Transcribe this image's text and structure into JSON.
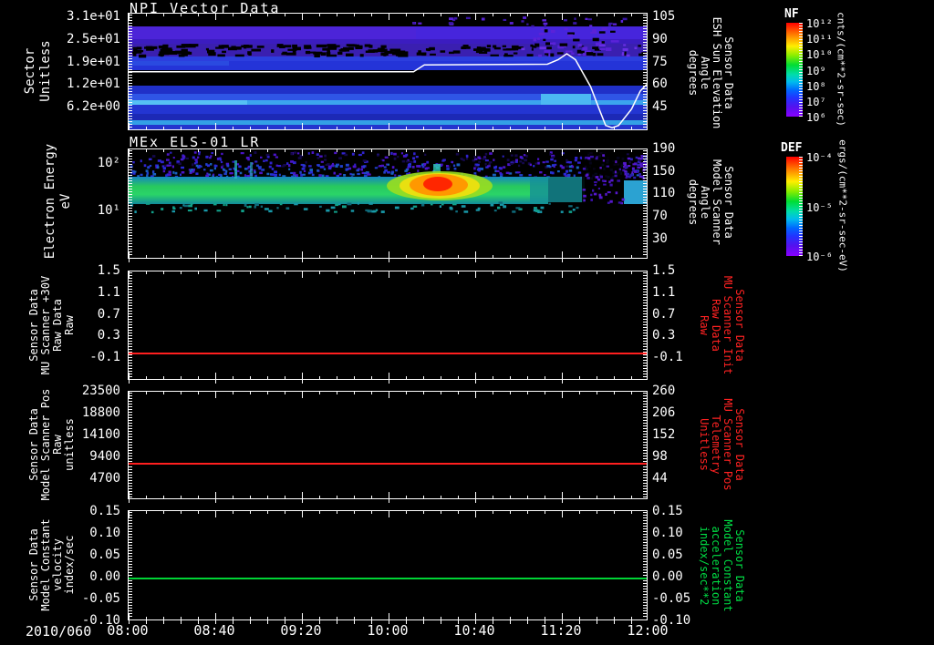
{
  "figure": {
    "date_label": "2010/060",
    "x_ticks": [
      "08:00",
      "08:40",
      "09:20",
      "10:00",
      "10:40",
      "11:20",
      "12:00"
    ],
    "background": "#000000",
    "frame_color": "#ffffff"
  },
  "panels": [
    {
      "id": "npi",
      "title": "NPI Vector Data",
      "left_label": "Sector\nUnitless",
      "left_ticks": [
        "3.1e+01",
        "2.5e+01",
        "1.9e+01",
        "1.2e+01",
        "6.2e+00"
      ],
      "yf": [
        0.03,
        0.8
      ],
      "right_ticks": [
        "105",
        "90",
        "75",
        "60",
        "45"
      ],
      "right_label": "Sensor Data\nESH Sun Elevation\nAngle\ndegrees",
      "colorbar": {
        "title": "NF",
        "ticks": [
          "10¹²",
          "10¹¹",
          "10¹⁰",
          "10⁹",
          "10⁸",
          "10⁷",
          "10⁶"
        ],
        "unit": "cnts/(cm**2-sr-sec)"
      }
    },
    {
      "id": "els",
      "title": "MEx ELS-01 LR",
      "left_label": "Electron Energy\neV",
      "left_ticks": [
        "10²",
        "10¹"
      ],
      "yf": [
        0.132,
        0.562
      ],
      "right_ticks": [
        "190",
        "150",
        "110",
        "70",
        "30"
      ],
      "ryf": [
        0.0,
        0.818
      ],
      "right_label": "Sensor Data\nModel Scanner\nAngle\ndegrees",
      "colorbar": {
        "title": "DEF",
        "ticks": [
          "10⁻⁴",
          "10⁻⁵",
          "10⁻⁶"
        ],
        "unit": "ergs/(cm**2-sr-sec-eV)"
      }
    },
    {
      "id": "p3",
      "left_label": "Sensor Data\nMU Scanner +30V\nRaw Data\nRaw",
      "left_ticks": [
        "1.5",
        "1.1",
        "0.7",
        "0.3",
        "-0.1"
      ],
      "yf": [
        0.0,
        0.792
      ],
      "right_ticks": [
        "1.5",
        "1.1",
        "0.7",
        "0.3",
        "-0.1"
      ],
      "right_label": "Sensor Data\nMU Scanner Init\nRaw Data\nRaw",
      "right_label_color": "#ff2222",
      "line": {
        "color": "#ff1f1f",
        "frac": 0.75,
        "value": 0.0
      }
    },
    {
      "id": "p4",
      "left_label": "Sensor Data\nModel Scanner Pos\nRaw\nunitless",
      "left_ticks": [
        "23500",
        "18800",
        "14100",
        "9400",
        "4700"
      ],
      "yf": [
        0.0,
        0.807
      ],
      "right_ticks": [
        "260",
        "206",
        "152",
        "98",
        "44"
      ],
      "right_label": "Sensor Data\nMU Scanner Pos\nTelemetry\nUnitless",
      "right_label_color": "#ff2222",
      "line": {
        "color": "#ff1f1f",
        "frac": 0.664,
        "value": 8000
      }
    },
    {
      "id": "p5",
      "left_label": "Sensor Data\nModel Constant\nvelocity\nindex/sec",
      "left_ticks": [
        "0.15",
        "0.10",
        "0.05",
        "0.00",
        "-0.05",
        "-0.10"
      ],
      "yf": [
        0.008,
        1.0
      ],
      "right_ticks": [
        "0.15",
        "0.10",
        "0.05",
        "0.00",
        "-0.05",
        "-0.10"
      ],
      "right_label": "Sensor Data\nModel Constant\nacceleration\nindex/sec**2",
      "right_label_color": "#00dd44",
      "line": {
        "color": "#00d435",
        "frac": 0.612,
        "value": 0.0
      }
    }
  ],
  "chart_data": [
    {
      "type": "heatmap",
      "title": "NPI Vector Data",
      "ylabel": "Sector (Unitless)",
      "yticks": [
        31,
        25,
        19,
        12,
        6.2
      ],
      "x_range": [
        "2010/060 08:00",
        "2010/060 12:00"
      ],
      "colorbar": {
        "name": "NF",
        "unit": "cnts/(cm**2-sr-sec)",
        "scale": "log",
        "range": [
          1000000,
          1000000000000
        ]
      },
      "description": "Horizontally banded sector spectrogram; mostly blue/violet fluxes ~1e6-1e8 with black data-gap bands",
      "overlay_series": {
        "name": "Sensor Data ESH Sun Elevation Angle",
        "axis": "right",
        "unit": "degrees",
        "yticks": [
          105,
          90,
          75,
          60,
          45
        ],
        "points": [
          [
            0,
            68
          ],
          [
            132,
            68
          ],
          [
            137,
            72.5
          ],
          [
            194,
            73
          ],
          [
            199,
            76
          ],
          [
            203,
            80
          ],
          [
            207,
            76
          ],
          [
            214,
            58
          ],
          [
            218,
            43
          ],
          [
            221,
            32
          ],
          [
            224,
            30.5
          ],
          [
            227,
            32
          ],
          [
            233,
            43
          ],
          [
            237,
            55
          ],
          [
            240,
            59.5
          ]
        ],
        "points_format": "[minutes since 08:00, degrees]"
      }
    },
    {
      "type": "heatmap",
      "title": "MEx ELS-01 LR",
      "ylabel": "Electron Energy (eV)",
      "yscale": "log",
      "yticks": [
        100,
        10
      ],
      "colorbar": {
        "name": "DEF",
        "unit": "ergs/(cm**2-sr-sec-eV)",
        "scale": "log",
        "range": [
          1e-06,
          0.0001
        ]
      },
      "right_axis": {
        "label": "Sensor Data Model Scanner Angle (degrees)",
        "ticks": [
          190,
          150,
          110,
          70,
          30
        ]
      },
      "features": "Continuous green band ~1e-5 at 10-40 eV from 08:00 to ~11:25; red-orange peak near 1e-4 around 10:20-10:30 at 20-50 eV; sparse/black gap ~11:30-11:50; cyan patch near 12:00"
    },
    {
      "type": "line",
      "name": "Sensor Data MU Scanner +30V Raw Data (Raw)",
      "color": "#ff1f1f",
      "value_constant": 0.0,
      "yticks": [
        1.5,
        1.1,
        0.7,
        0.3,
        -0.1
      ],
      "right_axis": {
        "label": "Sensor Data MU Scanner Init Raw Data (Raw)",
        "ticks": [
          1.5,
          1.1,
          0.7,
          0.3,
          -0.1
        ],
        "value_constant": 0.0
      }
    },
    {
      "type": "line",
      "name": "Sensor Data Model Scanner Pos Raw (unitless)",
      "color": "#ff1f1f",
      "value_constant": 8000,
      "yticks": [
        23500,
        18800,
        14100,
        9400,
        4700
      ],
      "right_axis": {
        "label": "Sensor Data MU Scanner Pos Telemetry (Unitless)",
        "ticks": [
          260,
          206,
          152,
          98,
          44
        ],
        "value_constant": 82
      }
    },
    {
      "type": "line",
      "name": "Sensor Data Model Constant velocity (index/sec)",
      "color": "#00d435",
      "value_constant": 0.0,
      "yticks": [
        0.15,
        0.1,
        0.05,
        0.0,
        -0.05,
        -0.1
      ],
      "right_axis": {
        "label": "Sensor Data Model Constant acceleration (index/sec**2)",
        "ticks": [
          0.15,
          0.1,
          0.05,
          0.0,
          -0.05,
          -0.1
        ],
        "value_constant": 0.0
      }
    }
  ]
}
